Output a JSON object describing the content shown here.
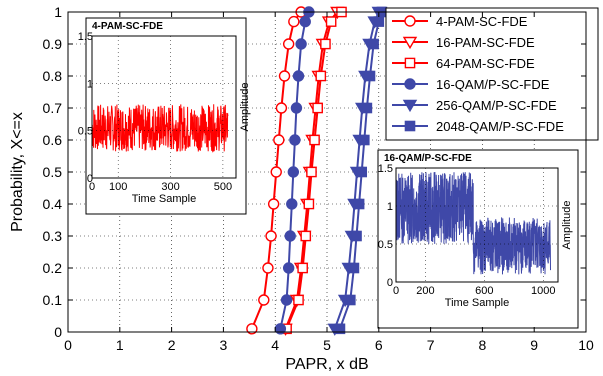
{
  "chart_data": {
    "type": "line",
    "xlabel": "PAPR, x dB",
    "ylabel": "Probability, X<=x",
    "xlim": [
      0,
      10
    ],
    "ylim": [
      0,
      1
    ],
    "xticks": [
      0,
      1,
      2,
      3,
      4,
      5,
      6,
      7,
      8,
      9,
      10
    ],
    "yticks": [
      0,
      0.1,
      0.2,
      0.3,
      0.4,
      0.5,
      0.6,
      0.7,
      0.8,
      0.9,
      1
    ],
    "xtick_labels": [
      "0",
      "1",
      "2",
      "3",
      "4",
      "5",
      "6",
      "7",
      "8",
      "9",
      "10"
    ],
    "ytick_labels": [
      "0",
      "0.1",
      "0.2",
      "0.3",
      "0.4",
      "0.5",
      "0.6",
      "0.7",
      "0.8",
      "0.9",
      "1"
    ],
    "grid": true,
    "legend_position": "top-right",
    "series": [
      {
        "name": "4-PAM-SC-FDE",
        "color": "#ff0000",
        "marker": "circle-open",
        "x": [
          3.55,
          3.78,
          3.86,
          3.92,
          3.97,
          4.02,
          4.07,
          4.12,
          4.18,
          4.26,
          4.36,
          4.5
        ],
        "y": [
          0.01,
          0.1,
          0.2,
          0.3,
          0.4,
          0.5,
          0.6,
          0.7,
          0.8,
          0.9,
          0.97,
          1.0
        ]
      },
      {
        "name": "16-PAM-SC-FDE",
        "color": "#ff0000",
        "marker": "triangle-down-open",
        "x": [
          4.2,
          4.42,
          4.5,
          4.56,
          4.62,
          4.67,
          4.72,
          4.78,
          4.84,
          4.92,
          5.04,
          5.2
        ],
        "y": [
          0.01,
          0.1,
          0.2,
          0.3,
          0.4,
          0.5,
          0.6,
          0.7,
          0.8,
          0.9,
          0.97,
          1.0
        ]
      },
      {
        "name": "64-PAM-SC-FDE",
        "color": "#ff0000",
        "marker": "square-open",
        "x": [
          4.22,
          4.45,
          4.53,
          4.59,
          4.65,
          4.7,
          4.76,
          4.82,
          4.88,
          4.97,
          5.08,
          5.28
        ],
        "y": [
          0.01,
          0.1,
          0.2,
          0.3,
          0.4,
          0.5,
          0.6,
          0.7,
          0.8,
          0.9,
          0.97,
          1.0
        ]
      },
      {
        "name": "16-QAM/P-SC-FDE",
        "color": "#3f48a8",
        "marker": "circle-filled",
        "x": [
          4.1,
          4.22,
          4.26,
          4.29,
          4.32,
          4.35,
          4.38,
          4.41,
          4.45,
          4.5,
          4.58,
          4.65
        ],
        "y": [
          0.01,
          0.1,
          0.2,
          0.3,
          0.4,
          0.5,
          0.6,
          0.7,
          0.8,
          0.9,
          0.97,
          1.0
        ]
      },
      {
        "name": "256-QAM/P-SC-FDE",
        "color": "#3f48a8",
        "marker": "triangle-down-filled",
        "x": [
          5.15,
          5.35,
          5.42,
          5.48,
          5.53,
          5.58,
          5.63,
          5.68,
          5.74,
          5.82,
          5.92,
          6.0
        ],
        "y": [
          0.01,
          0.1,
          0.2,
          0.3,
          0.4,
          0.5,
          0.6,
          0.7,
          0.8,
          0.9,
          0.97,
          1.0
        ]
      },
      {
        "name": "2048-QAM/P-SC-FDE",
        "color": "#3f48a8",
        "marker": "square-filled",
        "x": [
          5.25,
          5.45,
          5.52,
          5.57,
          5.62,
          5.67,
          5.72,
          5.77,
          5.83,
          5.9,
          6.0,
          6.06
        ],
        "y": [
          0.01,
          0.1,
          0.2,
          0.3,
          0.4,
          0.5,
          0.6,
          0.7,
          0.8,
          0.9,
          0.97,
          1.0
        ]
      }
    ],
    "insets": [
      {
        "title": "4-PAM-SC-FDE",
        "xlabel": "Time Sample",
        "ylabel": "Amplitude",
        "color": "#ff0000",
        "xlim": [
          0,
          550
        ],
        "ylim": [
          0,
          1.5
        ],
        "xticks": [
          0,
          100,
          300,
          500
        ],
        "xtick_labels": [
          "0",
          "100",
          "300",
          "500"
        ],
        "yticks": [
          0,
          0.5,
          1,
          1.5
        ],
        "ytick_labels": [
          "0",
          "0.5",
          "1",
          "1.5"
        ],
        "levels": [
          0.28,
          0.78
        ],
        "samples": 520
      },
      {
        "title": "16-QAM/P-SC-FDE",
        "xlabel": "Time Sample",
        "ylabel": "Amplitude",
        "color": "#3f48a8",
        "xlim": [
          0,
          1100
        ],
        "ylim": [
          0,
          1.5
        ],
        "xticks": [
          0,
          200,
          600,
          1000
        ],
        "xtick_labels": [
          "0",
          "200",
          "600",
          "1000"
        ],
        "yticks": [
          0,
          0.5,
          1,
          1.5
        ],
        "ytick_labels": [
          "0",
          "0.5",
          "1",
          "1.5"
        ],
        "levels_first_half": [
          0.5,
          1.45
        ],
        "levels_second_half": [
          0.1,
          0.85
        ],
        "samples": 1050
      }
    ]
  }
}
